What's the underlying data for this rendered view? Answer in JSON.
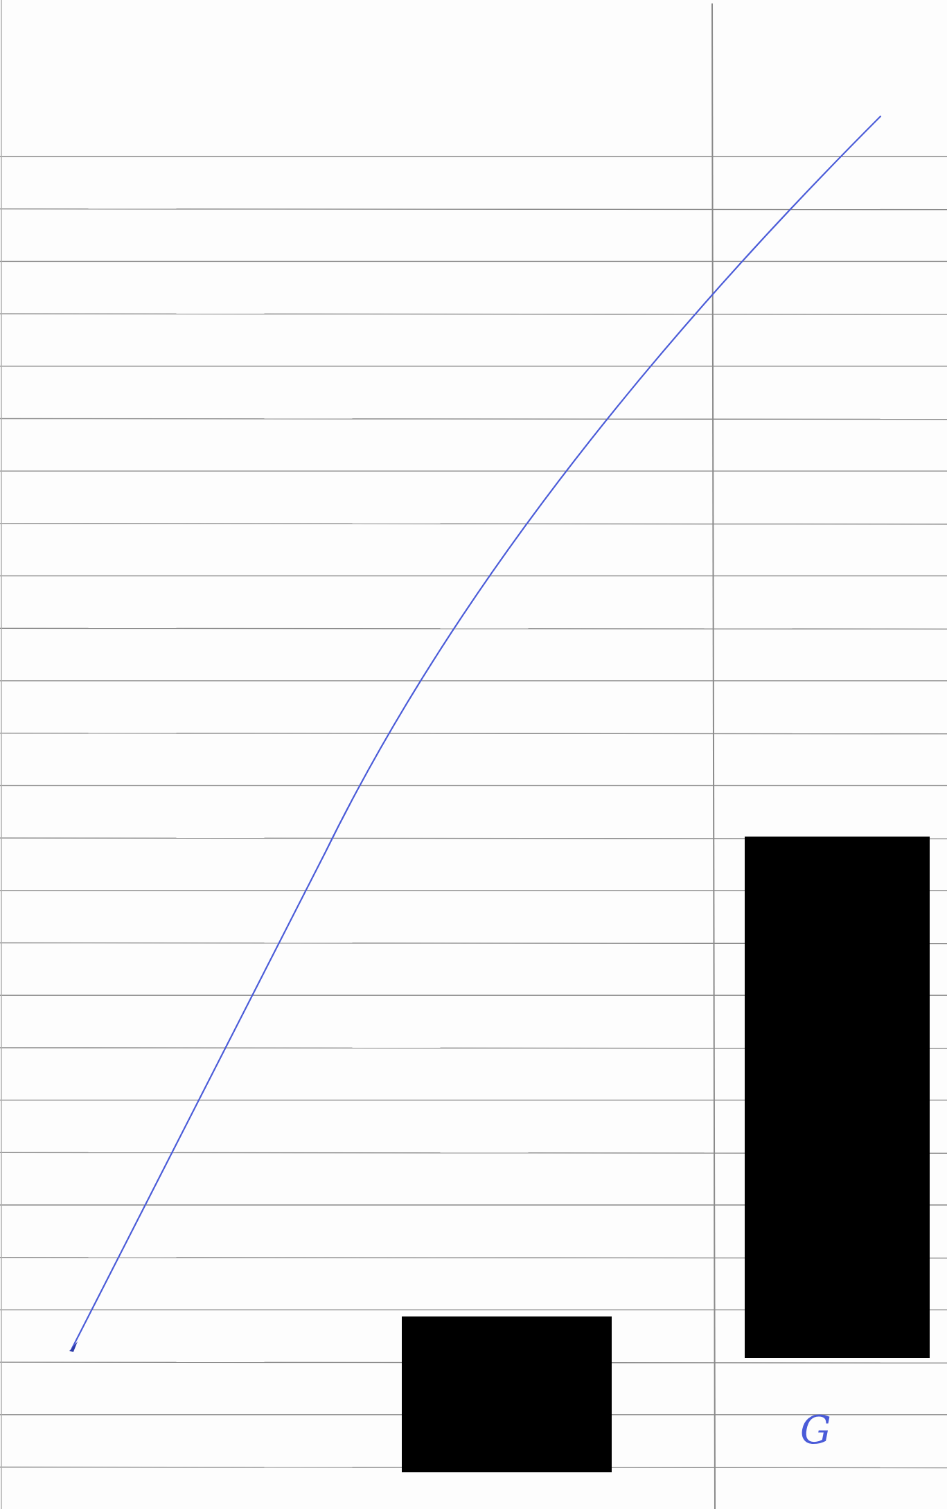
{
  "page": {
    "paper_color": "#fdfdfd",
    "rule_color": "#8a8a8a",
    "ink_color": "#4a5bd8",
    "redaction_color": "#000000"
  },
  "margin_note": {
    "text": "G"
  }
}
